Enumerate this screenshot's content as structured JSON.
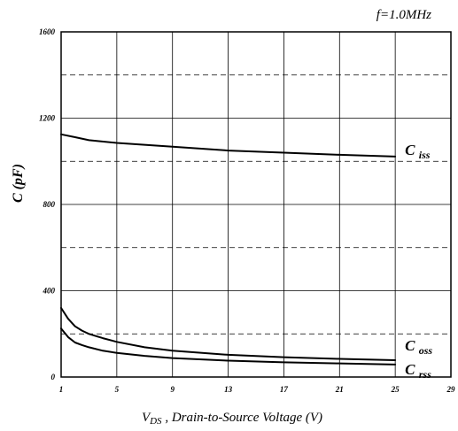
{
  "chart_data": {
    "type": "line",
    "annotation": "f=1.0MHz",
    "ylabel": "C (pF)",
    "xlabel_main": "V",
    "xlabel_sub": "DS",
    "xlabel_rest": " , Drain-to-Source Voltage (V)",
    "xlim": [
      1,
      29
    ],
    "ylim": [
      0,
      1600
    ],
    "x_ticks": [
      1,
      5,
      9,
      13,
      17,
      21,
      25,
      29
    ],
    "y_ticks": [
      0,
      400,
      800,
      1200,
      1600
    ],
    "grid": {
      "vertical_solid": [
        5,
        9,
        13,
        17,
        21,
        25
      ],
      "horizontal_solid": [
        400,
        800,
        1200
      ],
      "horizontal_dashed": [
        200,
        600,
        1000,
        1400
      ]
    },
    "series": [
      {
        "name_main": "C",
        "name_sub": "iss",
        "x": [
          1,
          2,
          3,
          5,
          9,
          13,
          17,
          21,
          25
        ],
        "values": [
          1125,
          1112,
          1098,
          1085,
          1068,
          1050,
          1040,
          1030,
          1022
        ]
      },
      {
        "name_main": "C",
        "name_sub": "oss",
        "x": [
          1,
          1.5,
          2,
          2.5,
          3,
          4,
          5,
          7,
          9,
          13,
          17,
          21,
          25
        ],
        "values": [
          320,
          270,
          235,
          215,
          200,
          180,
          163,
          138,
          122,
          103,
          92,
          84,
          78
        ]
      },
      {
        "name_main": "C",
        "name_sub": "rss",
        "x": [
          1,
          1.5,
          2,
          2.5,
          3,
          4,
          5,
          7,
          9,
          13,
          17,
          21,
          25
        ],
        "values": [
          225,
          185,
          160,
          148,
          138,
          122,
          112,
          98,
          88,
          76,
          68,
          63,
          58
        ]
      }
    ]
  }
}
